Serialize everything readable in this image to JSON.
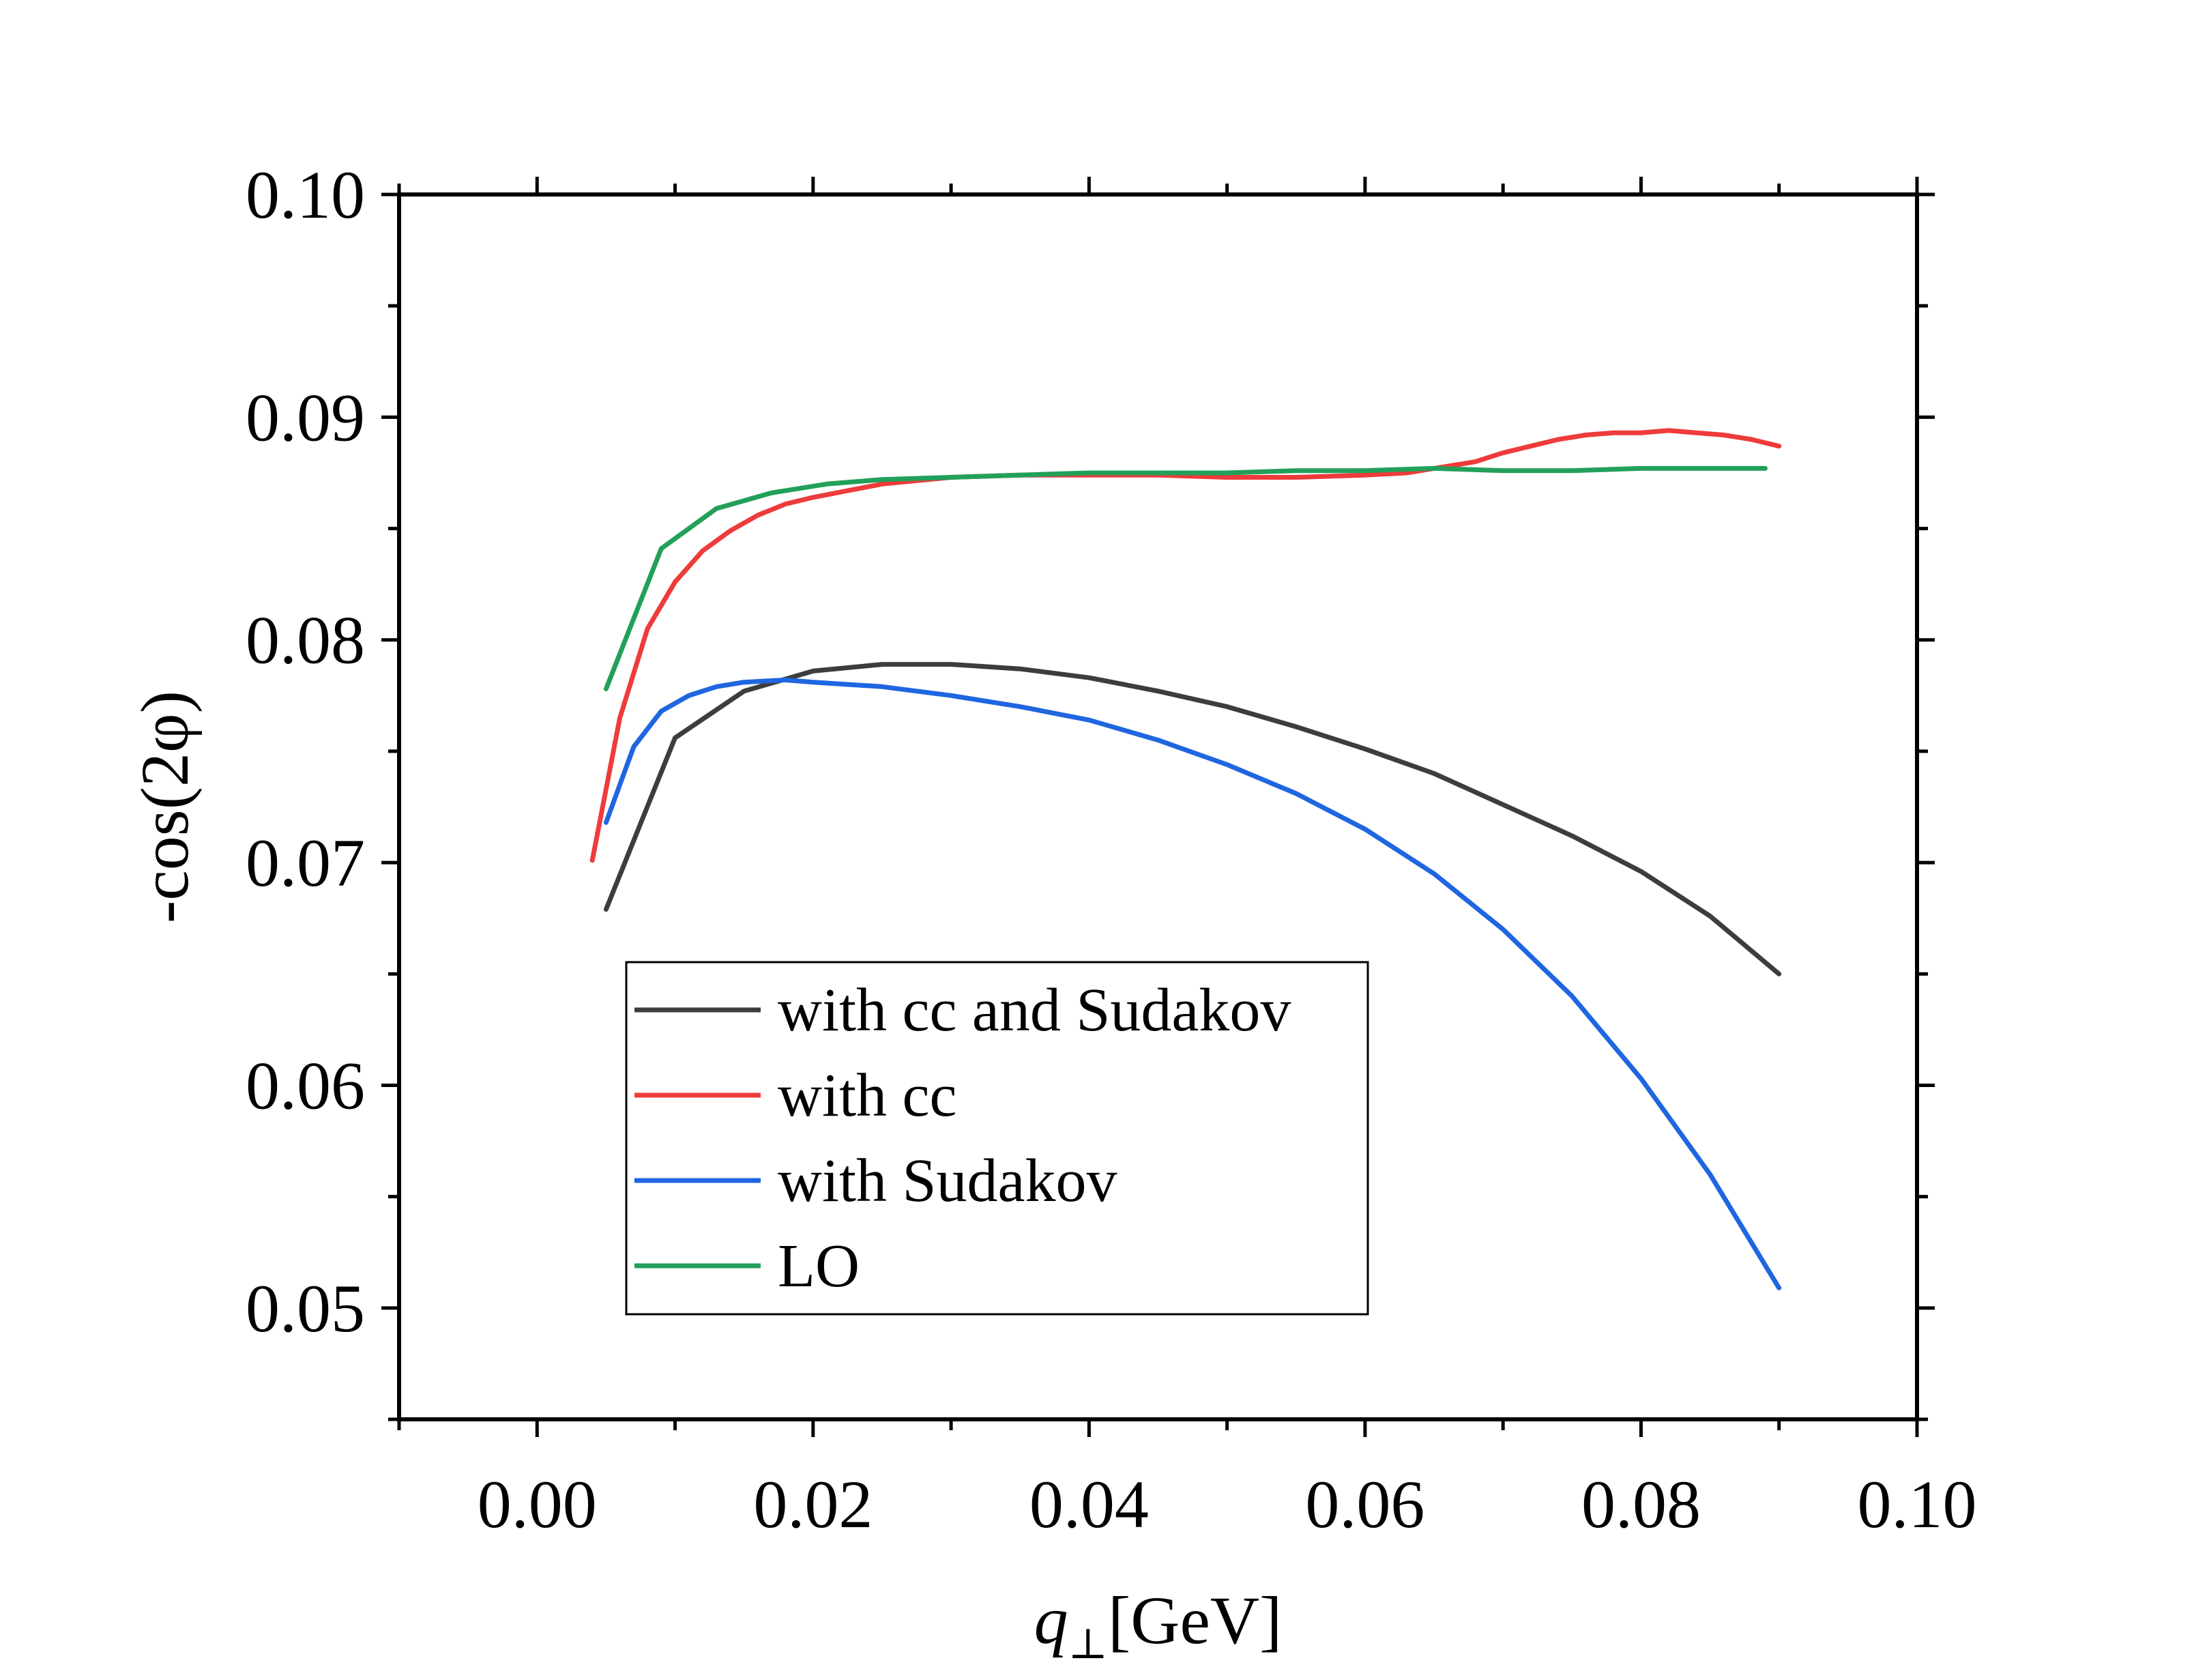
{
  "chart_data": {
    "type": "line",
    "title": "",
    "xlabel": {
      "symbol": "q",
      "subscript": "⊥",
      "unit": "[GeV]"
    },
    "ylabel": "-cos(2φ)",
    "xlim": [
      -0.01,
      0.1
    ],
    "ylim": [
      0.045,
      0.1
    ],
    "x_ticks": [
      0.0,
      0.02,
      0.04,
      0.06,
      0.08,
      0.1
    ],
    "x_tick_labels": [
      "0.00",
      "0.02",
      "0.04",
      "0.06",
      "0.08",
      "0.10"
    ],
    "y_ticks": [
      0.05,
      0.06,
      0.07,
      0.08,
      0.09,
      0.1
    ],
    "y_tick_labels": [
      "0.05",
      "0.06",
      "0.07",
      "0.08",
      "0.09",
      "0.10"
    ],
    "x_minor_step": 0.01,
    "y_minor_step": 0.005,
    "grid": false,
    "legend_position": "lower-left",
    "series": [
      {
        "name": "with cc and Sudakov",
        "color": "#3d3d3d",
        "x": [
          0.005,
          0.01,
          0.015,
          0.02,
          0.025,
          0.03,
          0.035,
          0.04,
          0.045,
          0.05,
          0.055,
          0.06,
          0.065,
          0.07,
          0.075,
          0.08,
          0.085,
          0.09
        ],
        "y": [
          0.0679,
          0.0756,
          0.0777,
          0.0786,
          0.0789,
          0.0789,
          0.0787,
          0.0783,
          0.0777,
          0.077,
          0.0761,
          0.0751,
          0.074,
          0.0726,
          0.0712,
          0.0696,
          0.0676,
          0.065
        ]
      },
      {
        "name": "with cc",
        "color": "#ee3b3b",
        "x": [
          0.004,
          0.006,
          0.008,
          0.01,
          0.012,
          0.014,
          0.016,
          0.018,
          0.02,
          0.025,
          0.03,
          0.035,
          0.04,
          0.045,
          0.05,
          0.055,
          0.06,
          0.063,
          0.066,
          0.068,
          0.07,
          0.072,
          0.074,
          0.076,
          0.078,
          0.08,
          0.082,
          0.084,
          0.086,
          0.088,
          0.09
        ],
        "y": [
          0.0701,
          0.0765,
          0.0805,
          0.0826,
          0.084,
          0.0849,
          0.0856,
          0.0861,
          0.0864,
          0.087,
          0.0873,
          0.0874,
          0.0874,
          0.0874,
          0.0873,
          0.0873,
          0.0874,
          0.0875,
          0.0878,
          0.088,
          0.0884,
          0.0887,
          0.089,
          0.0892,
          0.0893,
          0.0893,
          0.0894,
          0.0893,
          0.0892,
          0.089,
          0.0887
        ]
      },
      {
        "name": "with Sudakov",
        "color": "#1f66e0",
        "x": [
          0.005,
          0.007,
          0.009,
          0.011,
          0.013,
          0.015,
          0.018,
          0.02,
          0.025,
          0.03,
          0.035,
          0.04,
          0.045,
          0.05,
          0.055,
          0.06,
          0.065,
          0.07,
          0.075,
          0.08,
          0.085,
          0.09
        ],
        "y": [
          0.0718,
          0.0752,
          0.0768,
          0.0775,
          0.0779,
          0.0781,
          0.0782,
          0.0781,
          0.0779,
          0.0775,
          0.077,
          0.0764,
          0.0755,
          0.0744,
          0.0731,
          0.0715,
          0.0695,
          0.067,
          0.064,
          0.0603,
          0.056,
          0.0509
        ]
      },
      {
        "name": "LO",
        "color": "#22a05a",
        "x": [
          0.005,
          0.009,
          0.013,
          0.017,
          0.021,
          0.025,
          0.03,
          0.035,
          0.04,
          0.045,
          0.05,
          0.055,
          0.06,
          0.065,
          0.07,
          0.075,
          0.08,
          0.085,
          0.089
        ],
        "y": [
          0.0778,
          0.0841,
          0.0859,
          0.0866,
          0.087,
          0.0872,
          0.0873,
          0.0874,
          0.0875,
          0.0875,
          0.0875,
          0.0876,
          0.0876,
          0.0877,
          0.0876,
          0.0876,
          0.0877,
          0.0877,
          0.0877
        ]
      }
    ]
  }
}
